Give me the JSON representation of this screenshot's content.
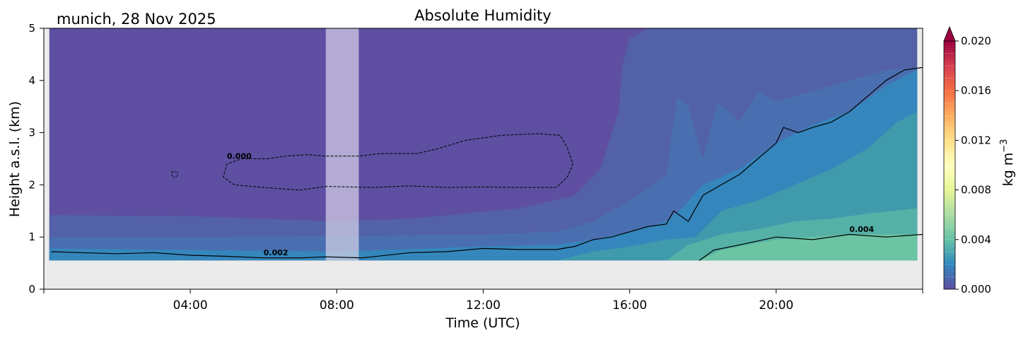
{
  "chart_data": {
    "type": "heatmap",
    "title": "Absolute Humidity",
    "subtitle": "munich, 28 Nov 2025",
    "xlabel": "Time (UTC)",
    "ylabel": "Height a.s.l. (km)",
    "xlim_hours": [
      0,
      24
    ],
    "ylim_km": [
      0,
      5
    ],
    "x_ticks": [
      "04:00",
      "08:00",
      "12:00",
      "16:00",
      "20:00"
    ],
    "y_ticks": [
      "0",
      "1",
      "2",
      "3",
      "4",
      "5"
    ],
    "colorbar": {
      "label": "kg m",
      "label_exp": "−3",
      "range": [
        0.0,
        0.02
      ],
      "ticks": [
        "0.000",
        "0.004",
        "0.008",
        "0.012",
        "0.016",
        "0.020"
      ],
      "extend": "max",
      "colormap": "Spectral_r"
    },
    "no_data_gap_hours": [
      7.7,
      8.6
    ],
    "ground_level_km": 0.55,
    "contours": [
      {
        "level_label": "0.000",
        "style": "dashed",
        "x": 5.0,
        "y": 2.5
      },
      {
        "level_label": "0.002",
        "style": "solid",
        "x": 6.0,
        "y": 0.65
      },
      {
        "level_label": "0.004",
        "style": "solid",
        "x": 22.0,
        "y": 1.1
      }
    ],
    "contour_0002_line": [
      [
        0.2,
        0.72
      ],
      [
        1,
        0.7
      ],
      [
        2,
        0.68
      ],
      [
        3,
        0.7
      ],
      [
        4,
        0.65
      ],
      [
        5,
        0.63
      ],
      [
        6,
        0.6
      ],
      [
        7,
        0.6
      ],
      [
        7.7,
        0.62
      ],
      [
        8.7,
        0.6
      ],
      [
        10,
        0.7
      ],
      [
        11,
        0.72
      ],
      [
        12,
        0.78
      ],
      [
        13,
        0.76
      ],
      [
        14,
        0.76
      ],
      [
        14.5,
        0.82
      ],
      [
        15,
        0.95
      ],
      [
        15.5,
        1.0
      ],
      [
        16,
        1.1
      ],
      [
        16.5,
        1.2
      ],
      [
        17,
        1.25
      ],
      [
        17.2,
        1.5
      ],
      [
        17.6,
        1.3
      ],
      [
        18,
        1.8
      ],
      [
        18.5,
        2.0
      ],
      [
        19,
        2.2
      ],
      [
        19.5,
        2.5
      ],
      [
        20,
        2.8
      ],
      [
        20.2,
        3.1
      ],
      [
        20.6,
        3.0
      ],
      [
        21,
        3.1
      ],
      [
        21.5,
        3.2
      ],
      [
        22,
        3.4
      ],
      [
        22.5,
        3.7
      ],
      [
        23,
        4.0
      ],
      [
        23.5,
        4.2
      ],
      [
        24,
        4.25
      ]
    ],
    "contour_0004_line": [
      [
        17.9,
        0.55
      ],
      [
        18.3,
        0.75
      ],
      [
        19,
        0.85
      ],
      [
        20,
        1.0
      ],
      [
        21,
        0.95
      ],
      [
        22,
        1.05
      ],
      [
        23,
        1.0
      ],
      [
        24,
        1.05
      ]
    ]
  }
}
